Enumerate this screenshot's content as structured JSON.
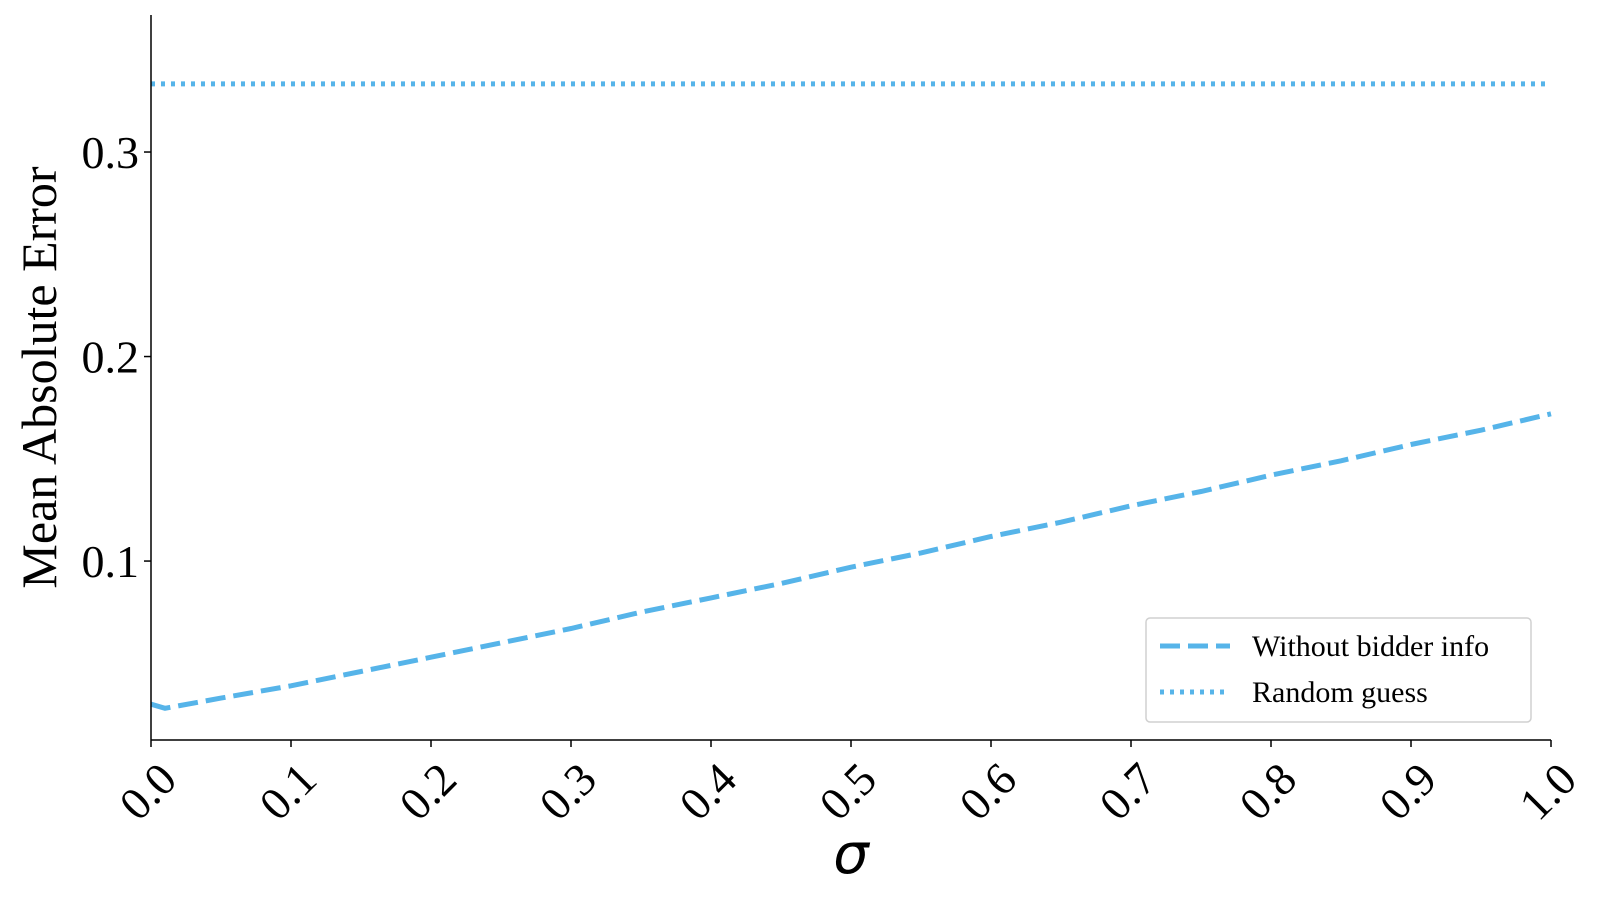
{
  "chart_data": {
    "type": "line",
    "title": "",
    "xlabel": "σ",
    "ylabel": "Mean Absolute Error",
    "xlim": [
      0.0,
      1.0
    ],
    "ylim": [
      0.0125,
      0.367
    ],
    "x_ticks": [
      "0.0",
      "0.1",
      "0.2",
      "0.3",
      "0.4",
      "0.5",
      "0.6",
      "0.7",
      "0.8",
      "0.9",
      "1.0"
    ],
    "y_ticks": [
      "0.1",
      "0.2",
      "0.3"
    ],
    "grid": false,
    "legend_position": "bottom-right",
    "series": [
      {
        "name": "Without bidder info",
        "style": "dashed",
        "color": "#56b4e9",
        "x": [
          0.0,
          0.01,
          0.05,
          0.1,
          0.15,
          0.2,
          0.25,
          0.3,
          0.35,
          0.4,
          0.45,
          0.5,
          0.55,
          0.6,
          0.65,
          0.7,
          0.75,
          0.8,
          0.85,
          0.9,
          0.95,
          1.0
        ],
        "y": [
          0.03,
          0.028,
          0.033,
          0.039,
          0.046,
          0.053,
          0.06,
          0.067,
          0.075,
          0.082,
          0.089,
          0.097,
          0.104,
          0.112,
          0.119,
          0.127,
          0.134,
          0.142,
          0.149,
          0.157,
          0.164,
          0.172
        ]
      },
      {
        "name": "Random guess",
        "style": "dotted",
        "color": "#56b4e9",
        "x": [
          0.0,
          1.0
        ],
        "y": [
          0.3333,
          0.3333
        ]
      }
    ]
  }
}
